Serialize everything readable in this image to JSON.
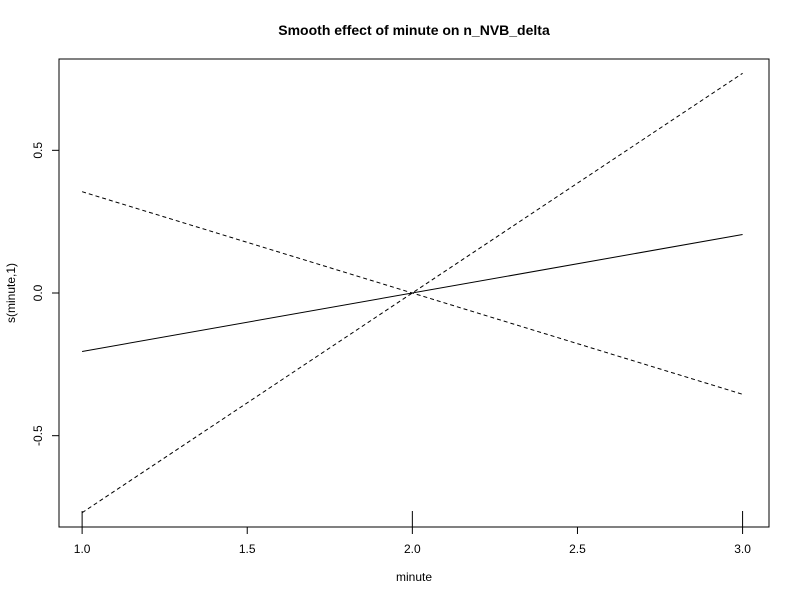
{
  "chart_data": {
    "type": "line",
    "title": "Smooth effect of minute on n_NVB_delta",
    "xlabel": "minute",
    "ylabel": "s(minute,1)",
    "xlim": [
      0.93,
      3.08
    ],
    "ylim": [
      -0.82,
      0.82
    ],
    "xticks": [
      1.0,
      1.5,
      2.0,
      2.5,
      3.0
    ],
    "xtick_labels": [
      "1.0",
      "1.5",
      "2.0",
      "2.5",
      "3.0"
    ],
    "yticks": [
      -0.5,
      0.0,
      0.5
    ],
    "ytick_labels": [
      "-0.5",
      "0.0",
      "0.5"
    ],
    "rug": [
      1.0,
      2.0,
      3.0
    ],
    "grid": false,
    "series": [
      {
        "style": "solid",
        "x": [
          1.0,
          3.0
        ],
        "y": [
          -0.205,
          0.205
        ]
      },
      {
        "style": "dashed",
        "x": [
          1.0,
          2.0,
          3.0
        ],
        "y": [
          0.355,
          0.0,
          -0.355
        ]
      },
      {
        "style": "dashed",
        "x": [
          1.0,
          2.0,
          3.0
        ],
        "y": [
          -0.77,
          0.0,
          0.77
        ]
      }
    ]
  }
}
